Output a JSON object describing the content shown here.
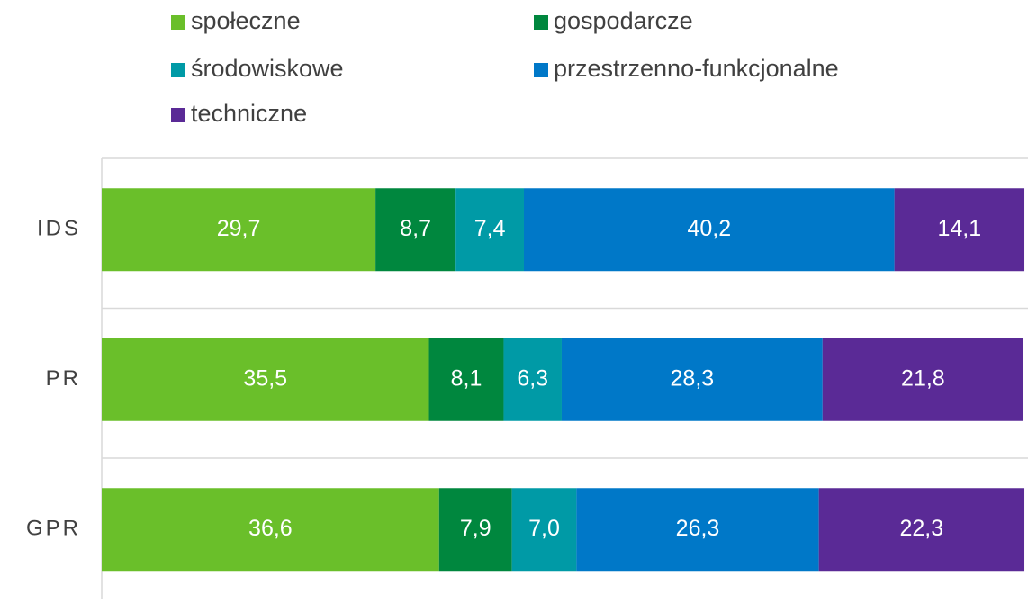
{
  "chart_data": {
    "type": "stacked-barh",
    "categories": [
      "IDS",
      "PR",
      "GPR"
    ],
    "series": [
      {
        "name": "społeczne",
        "color": "#6abf2a",
        "values": [
          29.7,
          35.5,
          36.6
        ],
        "value_labels": [
          "29,7",
          "35,5",
          "36,6"
        ]
      },
      {
        "name": "gospodarcze",
        "color": "#00873e",
        "values": [
          8.7,
          8.1,
          7.9
        ],
        "value_labels": [
          "8,7",
          "8,1",
          "7,9"
        ]
      },
      {
        "name": "środowiskowe",
        "color": "#009aa6",
        "values": [
          7.4,
          6.3,
          7.0
        ],
        "value_labels": [
          "7,4",
          "6,3",
          "7,0"
        ]
      },
      {
        "name": "przestrzenno-funkcjonalne",
        "color": "#0078c8",
        "values": [
          40.2,
          28.3,
          26.3
        ],
        "value_labels": [
          "40,2",
          "28,3",
          "26,3"
        ]
      },
      {
        "name": "techniczne",
        "color": "#5a2a96",
        "values": [
          14.1,
          21.8,
          22.3
        ],
        "value_labels": [
          "14,1",
          "21,8",
          "22,3"
        ]
      }
    ],
    "xlim": [
      0,
      100
    ],
    "legend": "top"
  }
}
